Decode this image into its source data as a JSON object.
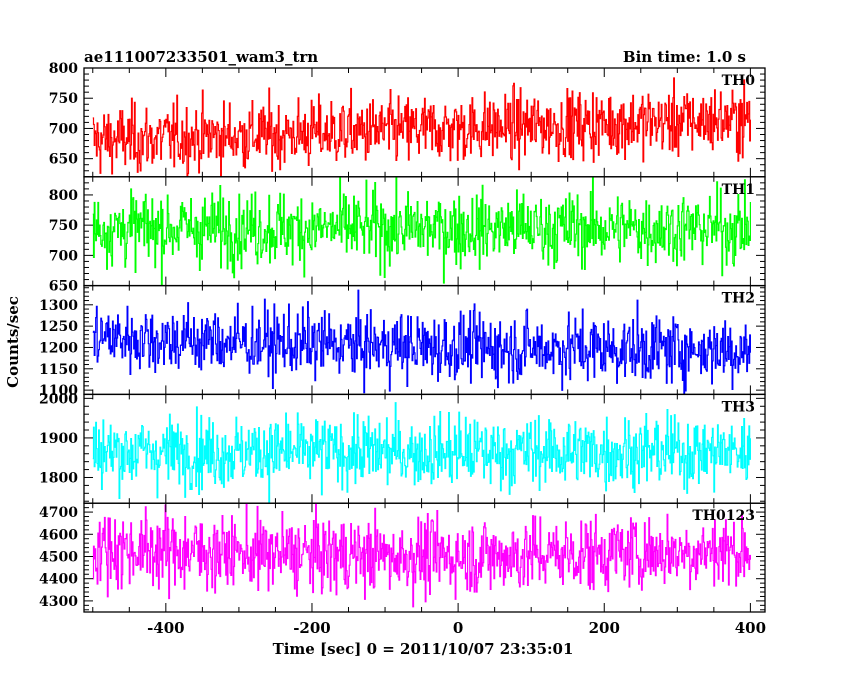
{
  "header": {
    "title": "ae111007233501_wam3_trn",
    "bin_time": "Bin time: 1.0 s"
  },
  "chart_data": {
    "type": "line",
    "title": "ae111007233501_wam3_trn",
    "subtitle": "Bin time: 1.0 s",
    "xlabel": "Time [sec] 0 = 2011/10/07 23:35:01",
    "ylabel": "Counts/sec",
    "xlim": [
      -512,
      420
    ],
    "xticks": [
      -400,
      -200,
      0,
      200,
      400
    ],
    "grid": false,
    "panels": [
      {
        "name": "TH0",
        "color": "#ff0000",
        "ylim": [
          620,
          800
        ],
        "yticks": [
          650,
          700,
          750,
          800
        ],
        "x_range": [
          -500,
          400
        ],
        "mean": 695,
        "spread": 28,
        "trend": [
          [
            -500,
            680
          ],
          [
            -250,
            690
          ],
          [
            0,
            700
          ],
          [
            250,
            710
          ],
          [
            400,
            715
          ]
        ]
      },
      {
        "name": "TH1",
        "color": "#00ff00",
        "ylim": [
          650,
          830
        ],
        "yticks": [
          650,
          700,
          750,
          800
        ],
        "x_range": [
          -500,
          400
        ],
        "mean": 745,
        "spread": 30,
        "trend": [
          [
            -500,
            745
          ],
          [
            400,
            745
          ]
        ]
      },
      {
        "name": "TH2",
        "color": "#0000ff",
        "ylim": [
          1090,
          1345
        ],
        "yticks": [
          1100,
          1150,
          1200,
          1250,
          1300
        ],
        "x_range": [
          -500,
          400
        ],
        "mean": 1205,
        "spread": 40,
        "trend": [
          [
            -500,
            1225
          ],
          [
            -250,
            1210
          ],
          [
            0,
            1200
          ],
          [
            400,
            1195
          ]
        ]
      },
      {
        "name": "TH3",
        "color": "#00ffff",
        "ylim": [
          1735,
          2010
        ],
        "yticks": [
          1800,
          1900,
          2000
        ],
        "x_range": [
          -500,
          400
        ],
        "mean": 1865,
        "spread": 45,
        "trend": [
          [
            -500,
            1865
          ],
          [
            400,
            1865
          ]
        ]
      },
      {
        "name": "TH0123",
        "color": "#ff00ff",
        "ylim": [
          4250,
          4740
        ],
        "yticks": [
          4300,
          4400,
          4500,
          4600,
          4700
        ],
        "x_range": [
          -500,
          400
        ],
        "mean": 4520,
        "spread": 85,
        "trend": [
          [
            -500,
            4540
          ],
          [
            -250,
            4510
          ],
          [
            0,
            4500
          ],
          [
            250,
            4520
          ],
          [
            400,
            4530
          ]
        ]
      }
    ]
  }
}
